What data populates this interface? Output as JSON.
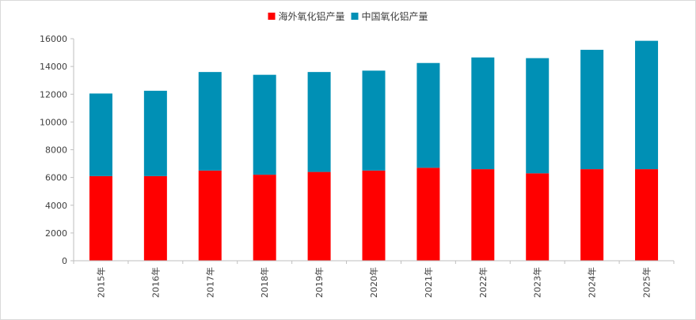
{
  "chart_data": {
    "type": "bar",
    "stacked": true,
    "categories": [
      "2015年",
      "2016年",
      "2017年",
      "2018年",
      "2019年",
      "2020年",
      "2021年",
      "2022年",
      "2023年",
      "2024年",
      "2025年"
    ],
    "series": [
      {
        "name": "海外氧化铝产量",
        "color": "#ff0000",
        "values": [
          6100,
          6100,
          6500,
          6200,
          6400,
          6500,
          6700,
          6600,
          6300,
          6600,
          6600
        ]
      },
      {
        "name": "中国氧化铝产量",
        "color": "#0090b5",
        "values": [
          5950,
          6150,
          7100,
          7200,
          7200,
          7200,
          7550,
          8050,
          8300,
          8600,
          9250
        ]
      }
    ],
    "ylim": [
      0,
      16000
    ],
    "yticks": [
      0,
      2000,
      4000,
      6000,
      8000,
      10000,
      12000,
      14000,
      16000
    ],
    "grid": false,
    "legend_position": "top-center"
  }
}
